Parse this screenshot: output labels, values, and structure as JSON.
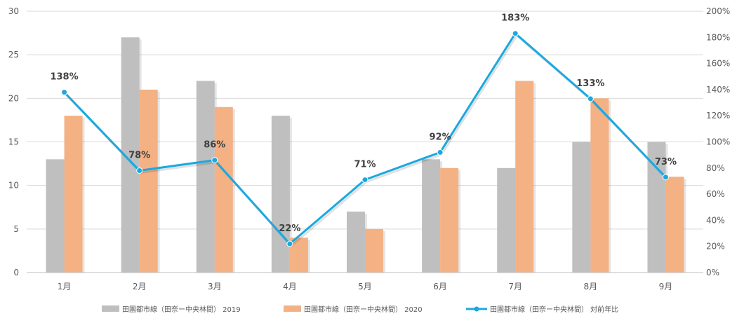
{
  "chart_data": {
    "type": "bar",
    "categories": [
      "1月",
      "2月",
      "3月",
      "4月",
      "5月",
      "6月",
      "7月",
      "8月",
      "9月"
    ],
    "series": [
      {
        "name": "田園都市線（田奈ー中央林間） 2019",
        "type": "bar",
        "axis": "left",
        "color": "#bfbfbf",
        "values": [
          13,
          27,
          22,
          18,
          7,
          13,
          12,
          15,
          15
        ]
      },
      {
        "name": "田園都市線（田奈ー中央林間） 2020",
        "type": "bar",
        "axis": "left",
        "color": "#f4b183",
        "values": [
          18,
          21,
          19,
          4,
          5,
          12,
          22,
          20,
          11
        ]
      },
      {
        "name": "田園都市線（田奈ー中央林間） 対前年比",
        "type": "line",
        "axis": "right",
        "color": "#1ba8e0",
        "values": [
          138,
          78,
          86,
          22,
          71,
          92,
          183,
          133,
          73
        ],
        "labels": [
          "138%",
          "78%",
          "86%",
          "22%",
          "71%",
          "92%",
          "183%",
          "133%",
          "73%"
        ]
      }
    ],
    "ylim_left": [
      0,
      30
    ],
    "left_ticks": [
      "0",
      "5",
      "10",
      "15",
      "20",
      "25",
      "30"
    ],
    "ylim_right": [
      0,
      200
    ],
    "right_ticks": [
      "0%",
      "20%",
      "40%",
      "60%",
      "80%",
      "100%",
      "120%",
      "140%",
      "160%",
      "180%",
      "200%"
    ],
    "grid": true,
    "legend_position": "bottom"
  }
}
